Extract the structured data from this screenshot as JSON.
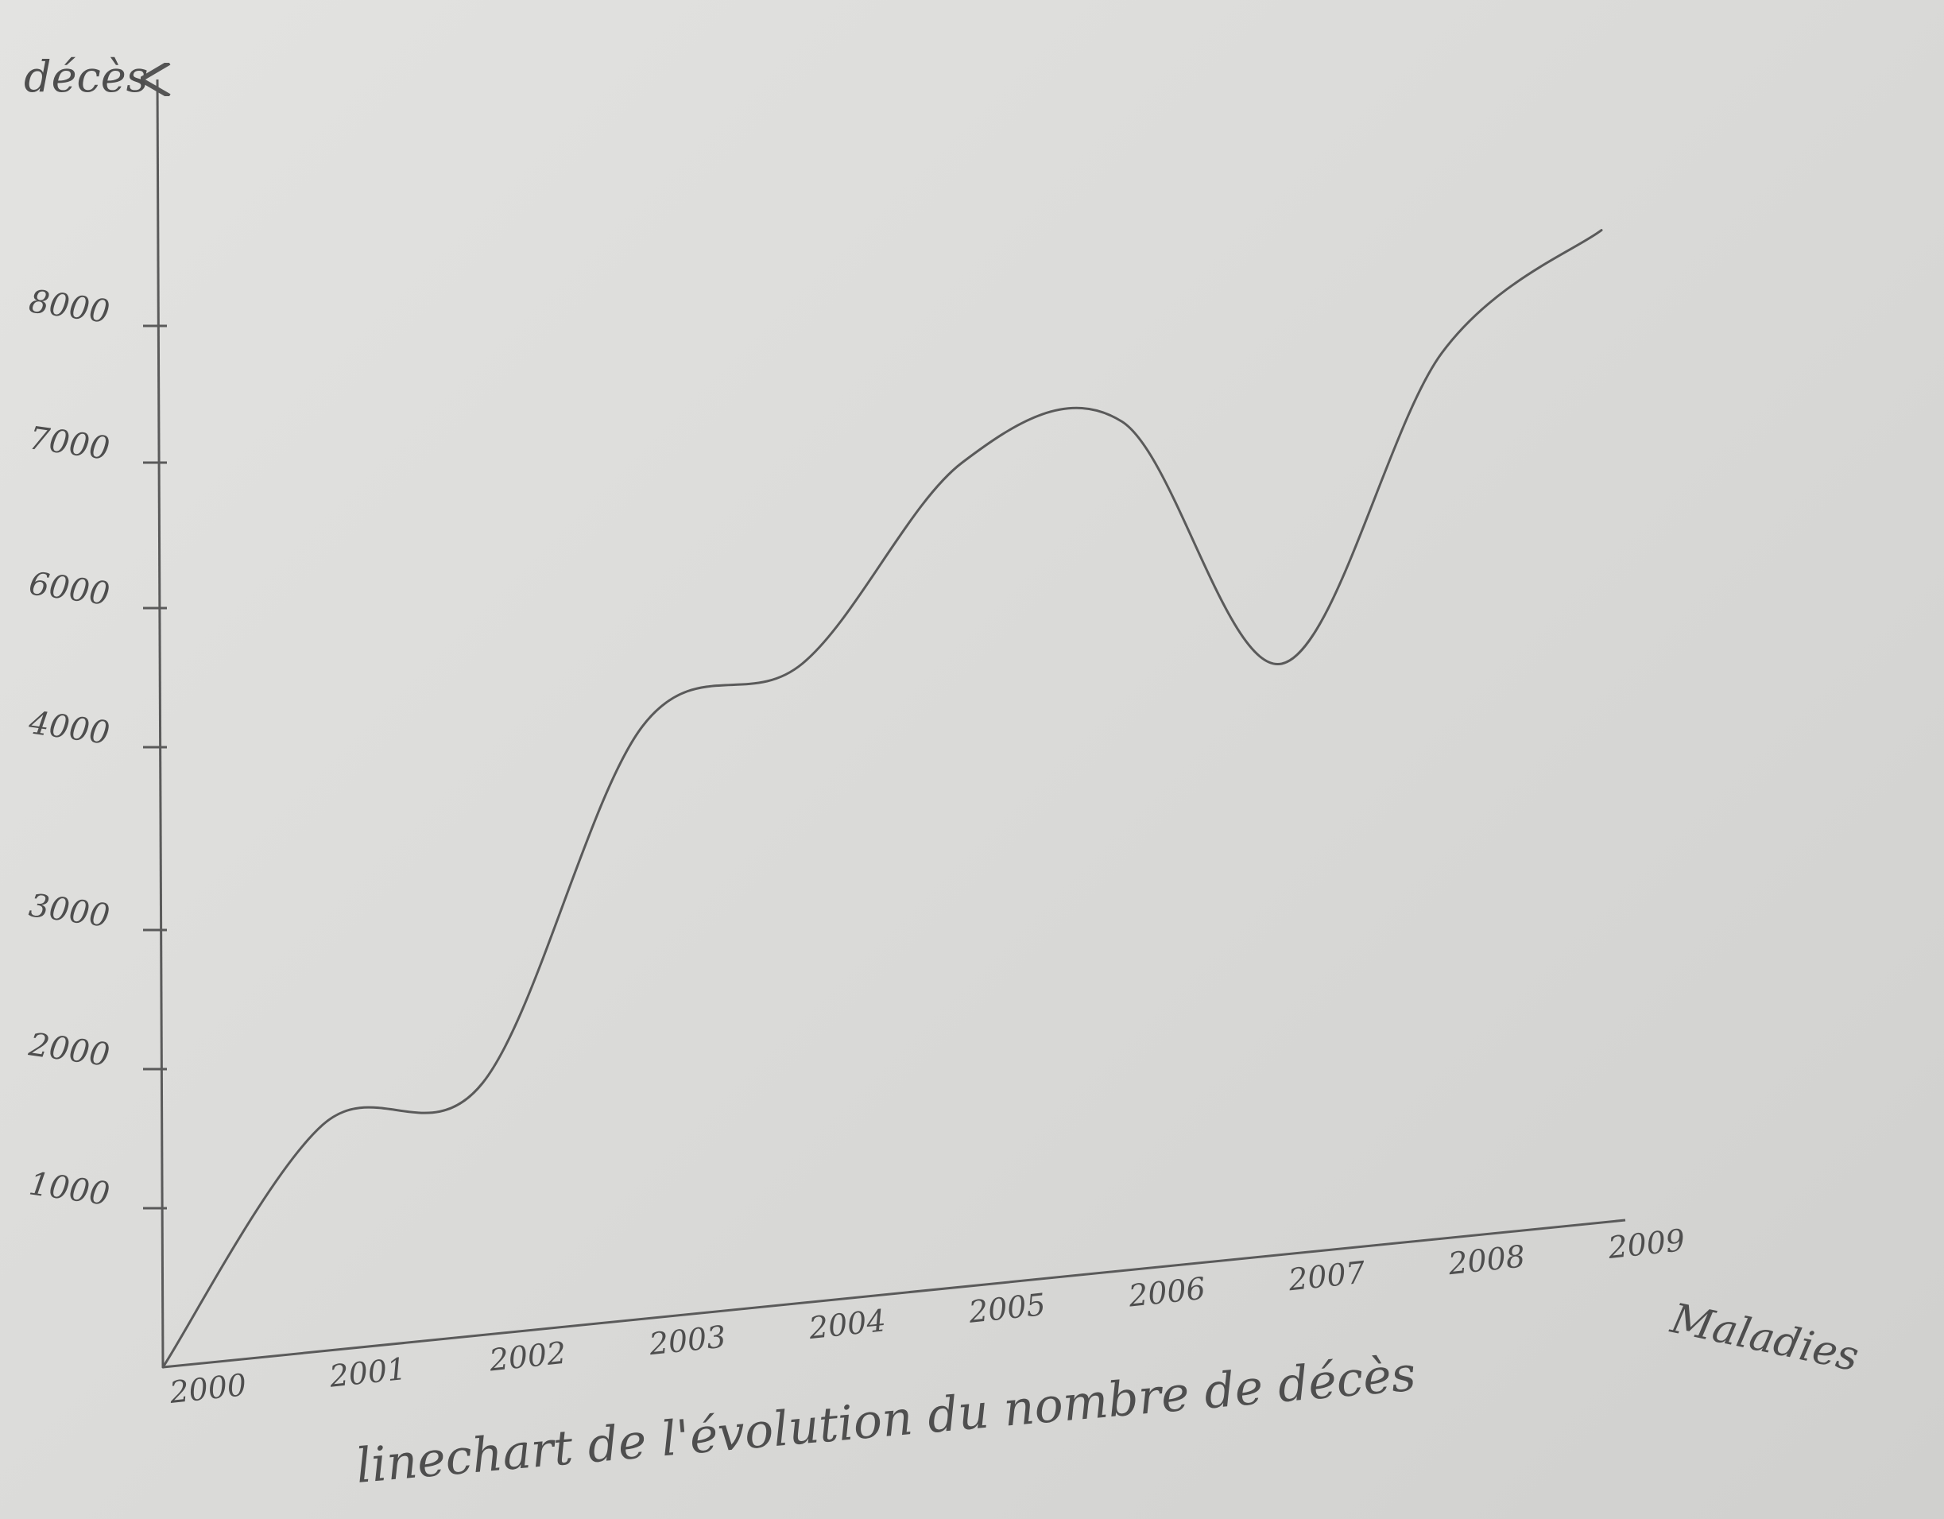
{
  "chart_data": {
    "type": "line",
    "title": "linechart de l'évolution du nombre de décès",
    "xlabel": "Maladies",
    "ylabel": "décès",
    "x": [
      2000,
      2001,
      2002,
      2003,
      2004,
      2005,
      2006,
      2007,
      2008,
      2009
    ],
    "x_tick_labels": [
      "2000",
      "2001",
      "2002",
      "2003",
      "2004",
      "2005",
      "2006",
      "2007",
      "2008",
      "2009"
    ],
    "y_ticks": [
      1000,
      2000,
      3000,
      4000,
      6000,
      7000,
      8000
    ],
    "y_tick_labels": [
      "1000",
      "2000",
      "3000",
      "4000",
      "6000",
      "7000",
      "8000"
    ],
    "ylim": [
      0,
      8000
    ],
    "series": [
      {
        "values": [
          0,
          1600,
          1900,
          4300,
          5200,
          7000,
          7300,
          5200,
          7800,
          8700
        ]
      }
    ],
    "color": "#5a5a5a",
    "grid": false
  }
}
